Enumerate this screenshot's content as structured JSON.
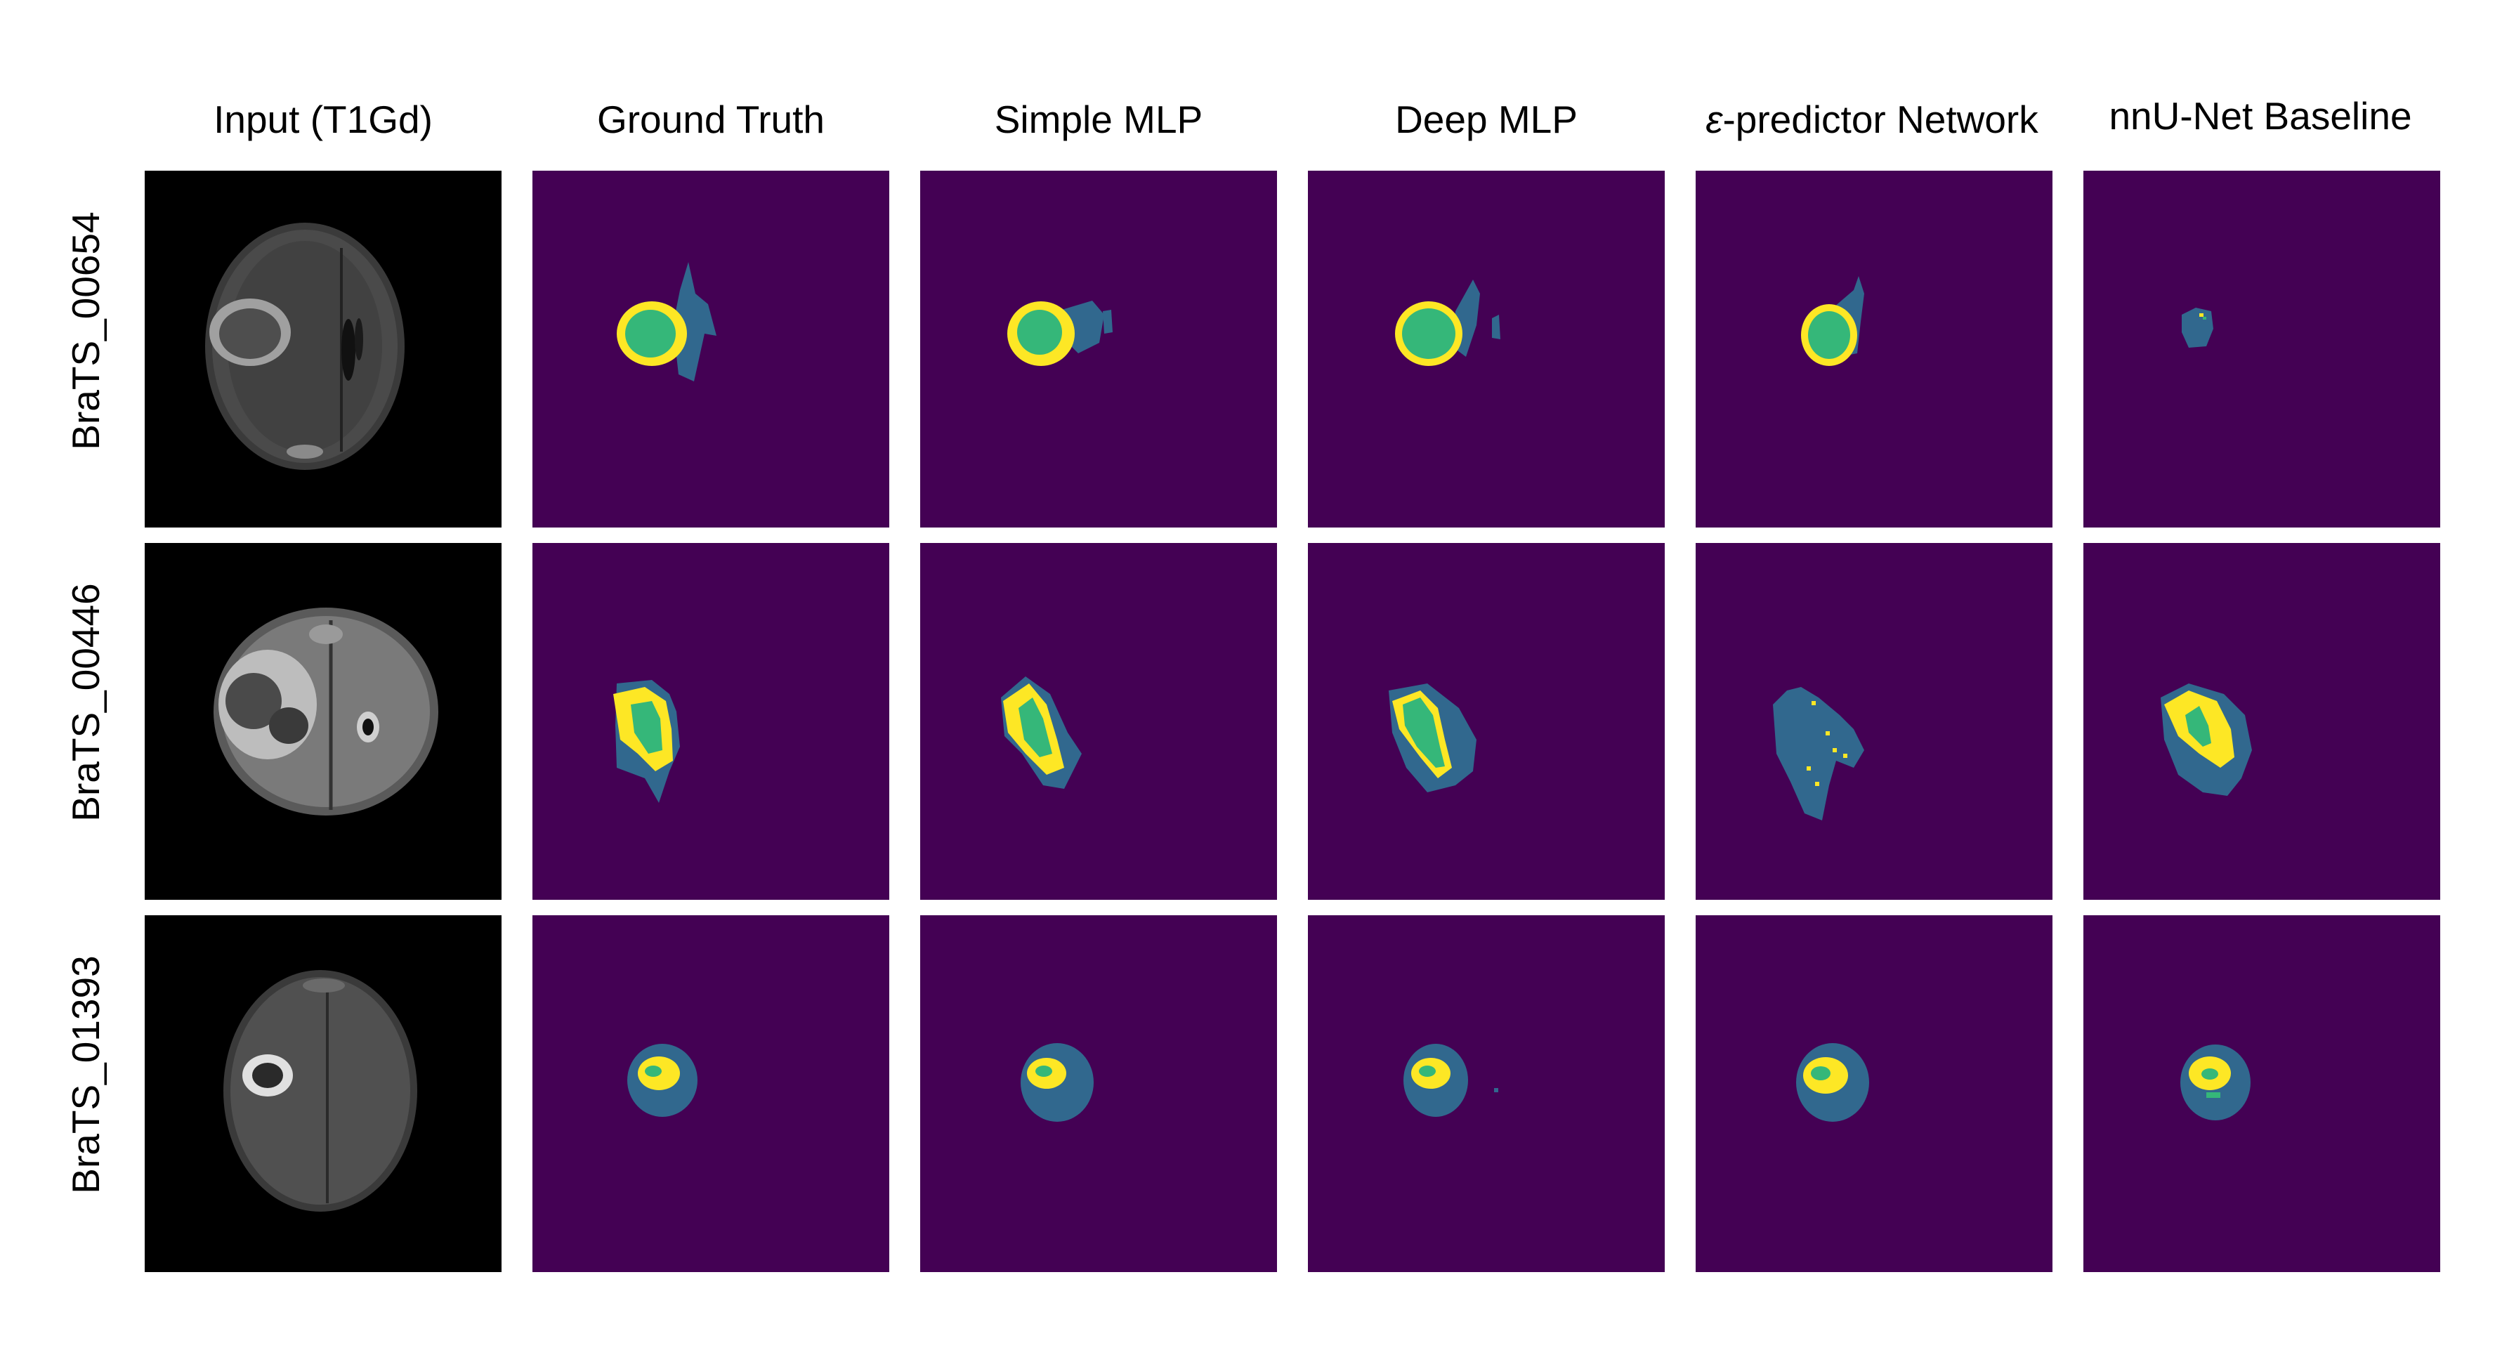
{
  "columns": [
    {
      "id": "input",
      "title": "Input (T1Gd)"
    },
    {
      "id": "gt",
      "title": "Ground Truth"
    },
    {
      "id": "simple",
      "title": "Simple MLP"
    },
    {
      "id": "deep",
      "title": "Deep MLP"
    },
    {
      "id": "eps",
      "title_symbol": "ε",
      "title_rest": "-predictor Network"
    },
    {
      "id": "nnunet",
      "title": "nnU-Net Baseline"
    }
  ],
  "rows": [
    {
      "id": "r1",
      "label": "BraTS_00654"
    },
    {
      "id": "r2",
      "label": "BraTS_00446"
    },
    {
      "id": "r3",
      "label": "BraTS_01393"
    }
  ],
  "colors": {
    "background": "#440154",
    "edema": "#31688e",
    "necrotic_core": "#35b779",
    "enhancing": "#fde725",
    "mri_bg": "#000000"
  }
}
